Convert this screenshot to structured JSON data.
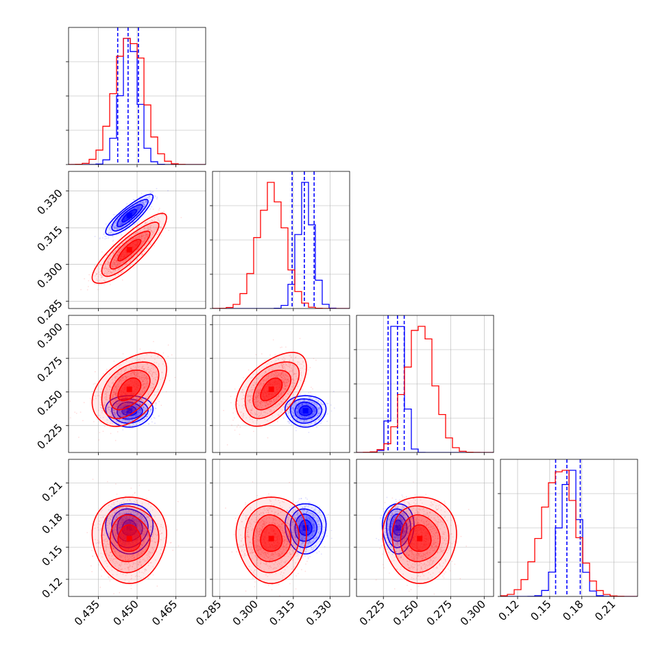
{
  "chart_data": {
    "type": "corner",
    "parameters": [
      {
        "ticks": [
          0.435,
          0.45,
          0.465
        ],
        "tick_labels": [
          "0.435",
          "0.450",
          "0.465"
        ],
        "range": [
          0.4235,
          0.4765
        ]
      },
      {
        "ticks": [
          0.285,
          0.3,
          0.315,
          0.33
        ],
        "tick_labels": [
          "0.285",
          "0.300",
          "0.315",
          "0.330"
        ],
        "range": [
          0.282,
          0.338
        ]
      },
      {
        "ticks": [
          0.225,
          0.25,
          0.275,
          0.3
        ],
        "tick_labels": [
          "0.225",
          "0.250",
          "0.275",
          "0.300"
        ],
        "range": [
          0.205,
          0.307
        ]
      },
      {
        "ticks": [
          0.12,
          0.15,
          0.18,
          0.21
        ],
        "tick_labels": [
          "0.12",
          "0.15",
          "0.18",
          "0.21"
        ],
        "range": [
          0.104,
          0.232
        ]
      }
    ],
    "series": [
      {
        "color": "#0000ff",
        "mean": [
          0.447,
          0.32,
          0.236,
          0.168
        ],
        "std": [
          0.0035,
          0.0032,
          0.0045,
          0.009
        ],
        "corr": {
          "0-1": 0.85,
          "0-2": 0.0,
          "0-3": 0.0,
          "1-2": 0.0,
          "1-3": 0.0,
          "2-3": 0.0
        },
        "quantiles": [
          [
            0.4425,
            0.4465,
            0.4505
          ],
          [
            0.3145,
            0.3195,
            0.3235
          ],
          [
            0.2285,
            0.2355,
            0.2405
          ],
          [
            0.1555,
            0.166,
            0.1785
          ]
        ]
      },
      {
        "color": "#ff0000",
        "mean": [
          0.447,
          0.306,
          0.252,
          0.158
        ],
        "std": [
          0.0055,
          0.0055,
          0.0105,
          0.0155
        ],
        "corr": {
          "0-1": 0.85,
          "0-2": 0.45,
          "0-3": 0.0,
          "1-2": 0.5,
          "1-3": 0.0,
          "2-3": 0.0
        }
      }
    ],
    "grid": true,
    "histogram_bins": 20,
    "contour_levels": 4
  }
}
